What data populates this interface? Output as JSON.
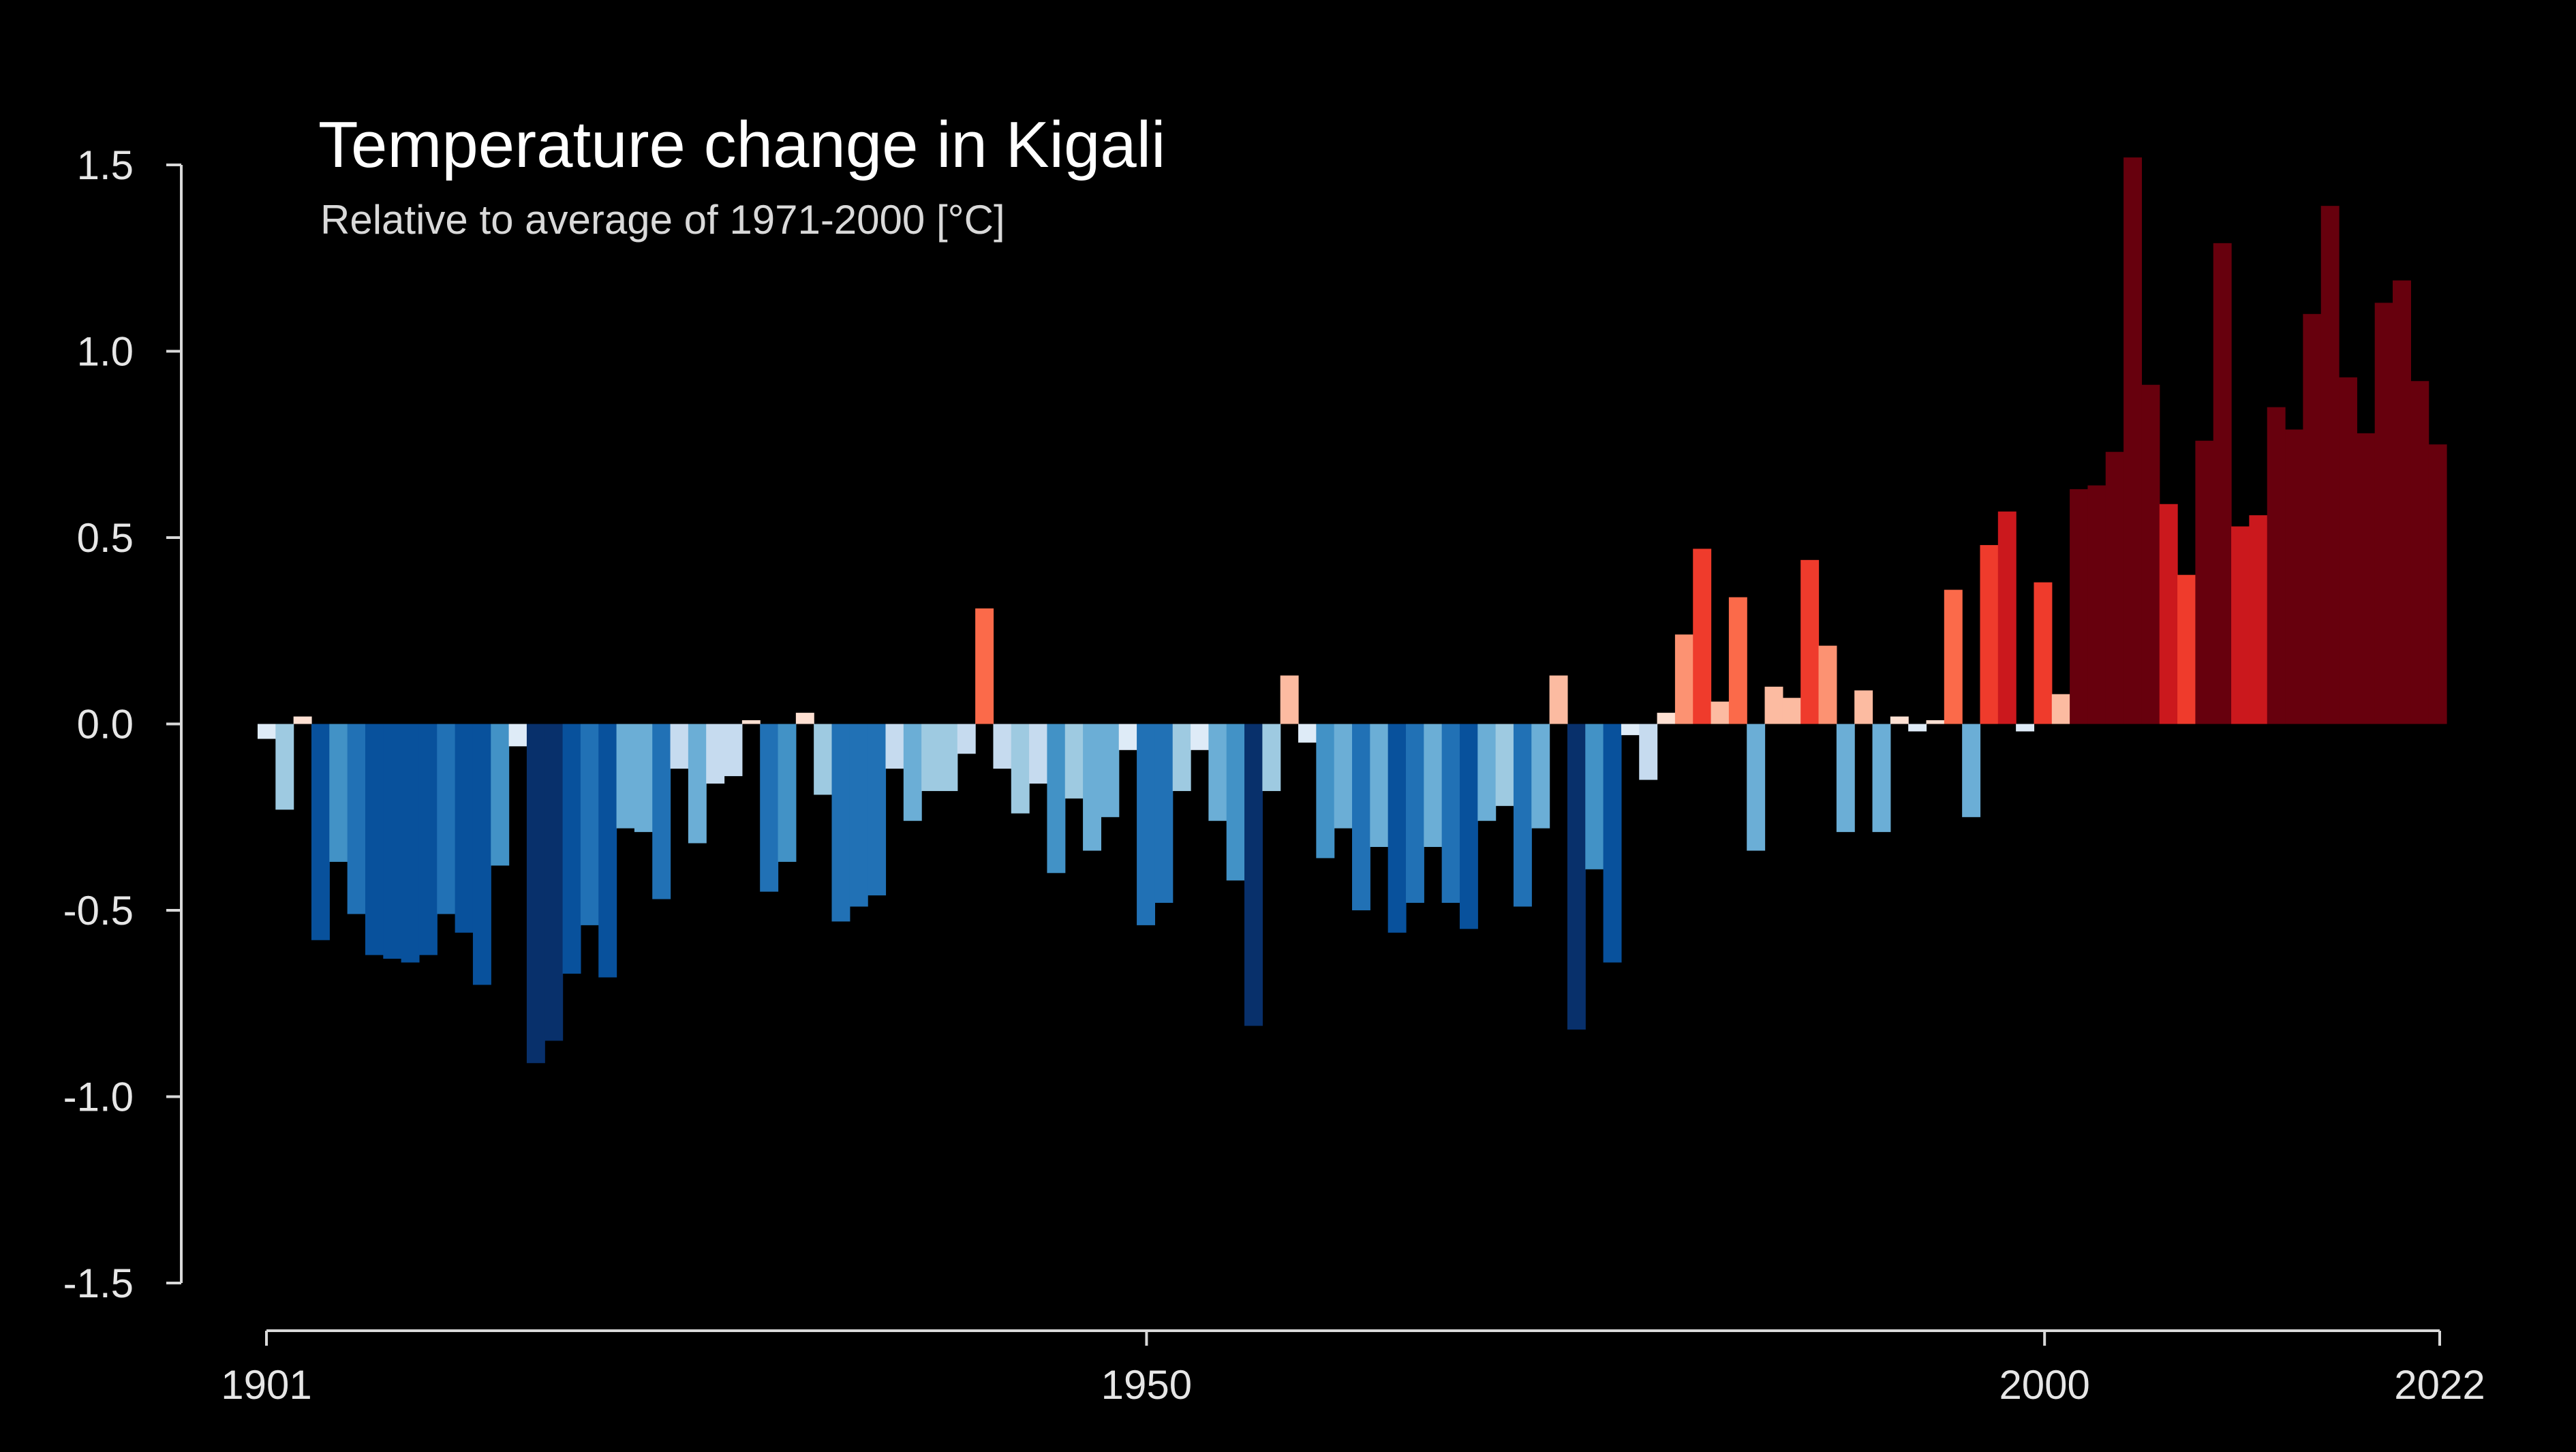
{
  "chart_data": {
    "type": "bar",
    "title": "Temperature change in Kigali",
    "subtitle": "Relative to average of 1971-2000  [°C]",
    "xlabel": "",
    "ylabel": "",
    "grid": false,
    "ylim": [
      -1.5,
      1.5
    ],
    "xlim": [
      1901,
      2022
    ],
    "y_ticks": [
      "-1.5",
      "-1.0",
      "-0.5",
      "0.0",
      "0.5",
      "1.0",
      "1.5"
    ],
    "x_ticks": [
      "1901",
      "1950",
      "2000",
      "2022"
    ],
    "color_scale": {
      "cold": [
        "#08306b",
        "#08519c",
        "#2171b5",
        "#4292c6",
        "#6baed6",
        "#9ecae1",
        "#c6dbef",
        "#deebf7"
      ],
      "warm": [
        "#fee0d2",
        "#fcbba1",
        "#fc9272",
        "#fb6a4a",
        "#ef3b2c",
        "#cb181d",
        "#67000d"
      ]
    },
    "x": [
      1901,
      1902,
      1903,
      1904,
      1905,
      1906,
      1907,
      1908,
      1909,
      1910,
      1911,
      1912,
      1913,
      1914,
      1915,
      1916,
      1917,
      1918,
      1919,
      1920,
      1921,
      1922,
      1923,
      1924,
      1925,
      1926,
      1927,
      1928,
      1929,
      1930,
      1931,
      1932,
      1933,
      1934,
      1935,
      1936,
      1937,
      1938,
      1939,
      1940,
      1941,
      1942,
      1943,
      1944,
      1945,
      1946,
      1947,
      1948,
      1949,
      1950,
      1951,
      1952,
      1953,
      1954,
      1955,
      1956,
      1957,
      1958,
      1959,
      1960,
      1961,
      1962,
      1963,
      1964,
      1965,
      1966,
      1967,
      1968,
      1969,
      1970,
      1971,
      1972,
      1973,
      1974,
      1975,
      1976,
      1977,
      1978,
      1979,
      1980,
      1981,
      1982,
      1983,
      1984,
      1985,
      1986,
      1987,
      1988,
      1989,
      1990,
      1991,
      1992,
      1993,
      1994,
      1995,
      1996,
      1997,
      1998,
      1999,
      2000,
      2001,
      2002,
      2003,
      2004,
      2005,
      2006,
      2007,
      2008,
      2009,
      2010,
      2011,
      2012,
      2013,
      2014,
      2015,
      2016,
      2017,
      2018,
      2019,
      2020,
      2021,
      2022
    ],
    "values": [
      -0.04,
      -0.23,
      0.02,
      -0.58,
      -0.37,
      -0.51,
      -0.62,
      -0.63,
      -0.64,
      -0.62,
      -0.51,
      -0.56,
      -0.7,
      -0.38,
      -0.06,
      -0.91,
      -0.85,
      -0.67,
      -0.54,
      -0.68,
      -0.28,
      -0.29,
      -0.47,
      -0.12,
      -0.32,
      -0.16,
      -0.14,
      0.01,
      -0.45,
      -0.37,
      0.03,
      -0.19,
      -0.53,
      -0.49,
      -0.46,
      -0.12,
      -0.26,
      -0.18,
      -0.18,
      -0.08,
      0.31,
      -0.12,
      -0.24,
      -0.16,
      -0.4,
      -0.2,
      -0.34,
      -0.25,
      -0.07,
      -0.54,
      -0.48,
      -0.18,
      -0.07,
      -0.26,
      -0.42,
      -0.81,
      -0.18,
      0.13,
      -0.05,
      -0.36,
      -0.28,
      -0.5,
      -0.33,
      -0.56,
      -0.48,
      -0.33,
      -0.48,
      -0.55,
      -0.26,
      -0.22,
      -0.49,
      -0.28,
      0.13,
      -0.82,
      -0.39,
      -0.64,
      -0.03,
      -0.15,
      0.03,
      0.24,
      0.47,
      0.06,
      0.34,
      -0.34,
      0.1,
      0.07,
      0.44,
      0.21,
      -0.29,
      0.09,
      -0.29,
      0.02,
      -0.02,
      0.01,
      0.36,
      -0.25,
      0.48,
      0.57,
      -0.02,
      0.38,
      0.08,
      0.63,
      0.64,
      0.73,
      1.52,
      0.91,
      0.59,
      0.4,
      0.76,
      1.29,
      0.53,
      0.56,
      0.85,
      0.79,
      1.1,
      1.39,
      0.93,
      0.78,
      1.13,
      1.19,
      0.92,
      0.75
    ]
  }
}
